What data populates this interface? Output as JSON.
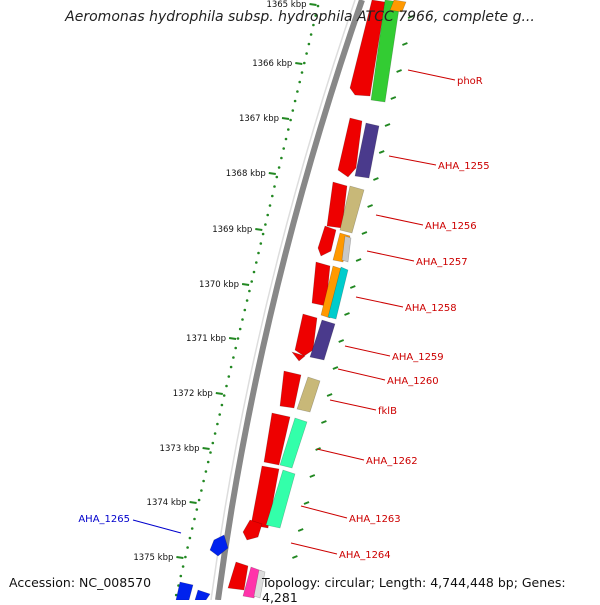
{
  "title": "Aeromonas hydrophila subsp. hydrophila ATCC 7966, complete g...",
  "footer": {
    "accession": "Accession: NC_008570",
    "topology": "Topology: circular; Length: 4,744,448 bp; Genes: 4,281"
  },
  "ruler_ticks": [
    "1365 kbp",
    "1366 kbp",
    "1367 kbp",
    "1368 kbp",
    "1369 kbp",
    "1370 kbp",
    "1371 kbp",
    "1372 kbp",
    "1373 kbp",
    "1374 kbp",
    "1375 kbp"
  ],
  "gene_labels": [
    {
      "text": "phoR",
      "color": "#cc0000"
    },
    {
      "text": "AHA_1255",
      "color": "#cc0000"
    },
    {
      "text": "AHA_1256",
      "color": "#cc0000"
    },
    {
      "text": "AHA_1257",
      "color": "#cc0000"
    },
    {
      "text": "AHA_1258",
      "color": "#cc0000"
    },
    {
      "text": "AHA_1259",
      "color": "#cc0000"
    },
    {
      "text": "AHA_1260",
      "color": "#cc0000"
    },
    {
      "text": "fklB",
      "color": "#cc0000"
    },
    {
      "text": "AHA_1262",
      "color": "#cc0000"
    },
    {
      "text": "AHA_1263",
      "color": "#cc0000"
    },
    {
      "text": "AHA_1264",
      "color": "#cc0000"
    },
    {
      "text": "AHA_1265",
      "color": "#0000cc"
    }
  ],
  "colors": {
    "forward_strand": "#ee0000",
    "reverse_strand": "#0022ee",
    "backbone": "#888888",
    "ruler": "#228822",
    "cog_palette": [
      "#33cc33",
      "#4a3a8c",
      "#c8b878",
      "#ff9900",
      "#00cccc",
      "#33ffaa",
      "#ff33aa"
    ]
  }
}
